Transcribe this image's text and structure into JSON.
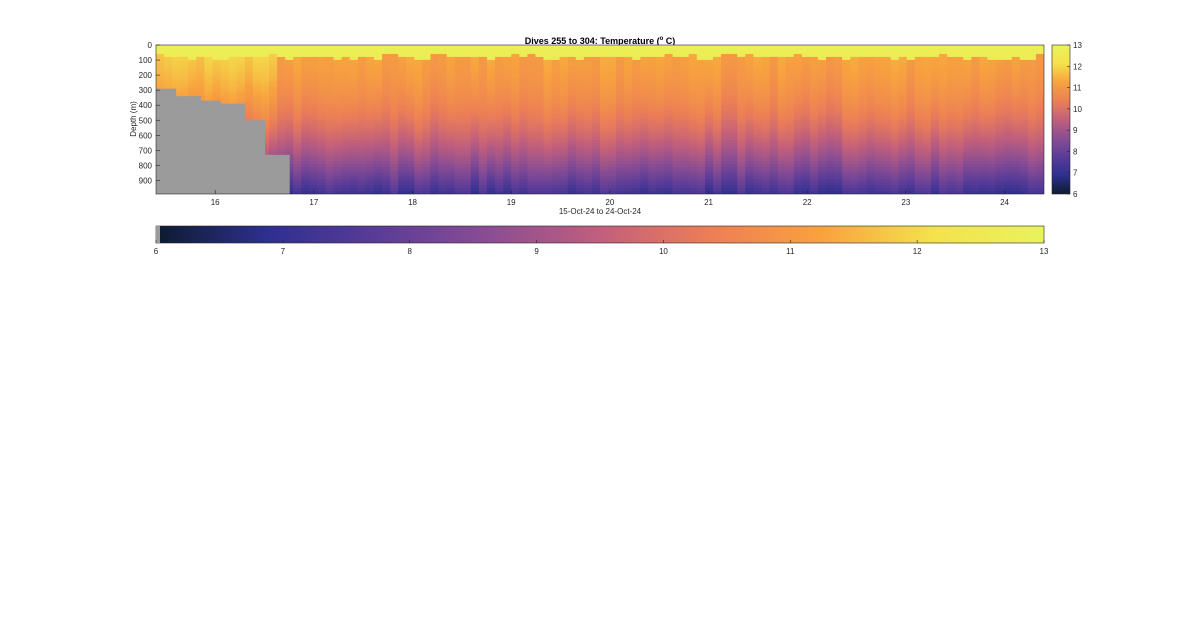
{
  "chart_data": {
    "type": "heatmap",
    "title_main": "Dives 255 to 304: Temperature (",
    "title_sup": "o",
    "title_unit": " C)",
    "ylabel": "Depth (m)",
    "xlabel": "15-Oct-24 to 24-Oct-24",
    "x_range": [
      15.4,
      24.4
    ],
    "y_range": [
      0,
      990
    ],
    "x_ticks": [
      16,
      17,
      18,
      19,
      20,
      21,
      22,
      23,
      24
    ],
    "y_ticks": [
      0,
      100,
      200,
      300,
      400,
      500,
      600,
      700,
      800,
      900
    ],
    "value_range": [
      6,
      13
    ],
    "colorbar_ticks": [
      6,
      7,
      8,
      9,
      10,
      11,
      12,
      13
    ],
    "colormap": [
      "#0d1b2f",
      "#2e2f8f",
      "#5a3c98",
      "#8a4d93",
      "#c15f7c",
      "#ec7f56",
      "#f8a23f",
      "#f4e24c",
      "#e9f35c"
    ],
    "no_data_color": "#9b9b9b",
    "no_data_depth_steps": [
      {
        "x_start": 15.4,
        "x_end": 15.6,
        "max_depth": 290
      },
      {
        "x_start": 15.6,
        "x_end": 15.85,
        "max_depth": 340
      },
      {
        "x_start": 15.85,
        "x_end": 16.05,
        "max_depth": 370
      },
      {
        "x_start": 16.05,
        "x_end": 16.3,
        "max_depth": 390
      },
      {
        "x_start": 16.3,
        "x_end": 16.5,
        "max_depth": 500
      },
      {
        "x_start": 16.5,
        "x_end": 16.75,
        "max_depth": 730
      }
    ],
    "thermocline_depth_100": 80,
    "surface_temperature": 12.8,
    "deep_temperature": 7.0
  }
}
